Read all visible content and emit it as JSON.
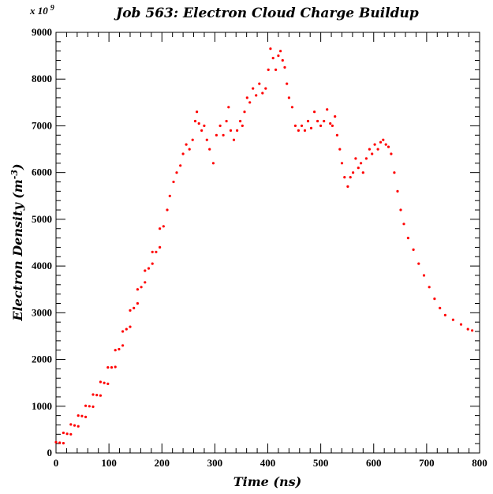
{
  "chart_data": {
    "type": "scatter",
    "title": "Job 563: Electron Cloud Charge Buildup",
    "xlabel": "Time (ns)",
    "ylabel_text": "Electron Density (m",
    "ylabel_exponent": "-3",
    "ylabel_close": ")",
    "y_multiplier_label": "x 10",
    "y_multiplier_exponent": "9",
    "xlim": [
      0,
      800
    ],
    "ylim": [
      0,
      9000
    ],
    "x_ticks": [
      0,
      100,
      200,
      300,
      400,
      500,
      600,
      700,
      800
    ],
    "y_ticks": [
      0,
      1000,
      2000,
      3000,
      4000,
      5000,
      6000,
      7000,
      8000,
      9000
    ],
    "grid": false,
    "marker_color": "#ff0000",
    "series": [
      {
        "points": [
          [
            0,
            230
          ],
          [
            7,
            220
          ],
          [
            14,
            210
          ],
          [
            14,
            430
          ],
          [
            21,
            410
          ],
          [
            28,
            400
          ],
          [
            28,
            610
          ],
          [
            35,
            590
          ],
          [
            42,
            570
          ],
          [
            42,
            800
          ],
          [
            49,
            790
          ],
          [
            56,
            770
          ],
          [
            56,
            1010
          ],
          [
            63,
            1000
          ],
          [
            70,
            990
          ],
          [
            70,
            1250
          ],
          [
            77,
            1240
          ],
          [
            84,
            1230
          ],
          [
            84,
            1520
          ],
          [
            91,
            1500
          ],
          [
            98,
            1480
          ],
          [
            98,
            1830
          ],
          [
            105,
            1830
          ],
          [
            112,
            1840
          ],
          [
            112,
            2200
          ],
          [
            119,
            2220
          ],
          [
            126,
            2300
          ],
          [
            126,
            2600
          ],
          [
            133,
            2650
          ],
          [
            140,
            2700
          ],
          [
            140,
            3050
          ],
          [
            147,
            3100
          ],
          [
            154,
            3200
          ],
          [
            154,
            3500
          ],
          [
            161,
            3550
          ],
          [
            168,
            3650
          ],
          [
            168,
            3900
          ],
          [
            175,
            3950
          ],
          [
            182,
            4050
          ],
          [
            182,
            4300
          ],
          [
            189,
            4300
          ],
          [
            196,
            4400
          ],
          [
            196,
            4800
          ],
          [
            203,
            4850
          ],
          [
            210,
            5200
          ],
          [
            215,
            5500
          ],
          [
            222,
            5800
          ],
          [
            228,
            6000
          ],
          [
            235,
            6150
          ],
          [
            240,
            6400
          ],
          [
            246,
            6600
          ],
          [
            252,
            6500
          ],
          [
            258,
            6700
          ],
          [
            263,
            7100
          ],
          [
            266,
            7300
          ],
          [
            270,
            7050
          ],
          [
            275,
            6900
          ],
          [
            280,
            7000
          ],
          [
            285,
            6700
          ],
          [
            290,
            6500
          ],
          [
            297,
            6200
          ],
          [
            303,
            6800
          ],
          [
            310,
            7000
          ],
          [
            316,
            6800
          ],
          [
            322,
            7100
          ],
          [
            326,
            7400
          ],
          [
            330,
            6900
          ],
          [
            336,
            6700
          ],
          [
            342,
            6900
          ],
          [
            348,
            7100
          ],
          [
            352,
            7000
          ],
          [
            356,
            7300
          ],
          [
            361,
            7600
          ],
          [
            366,
            7500
          ],
          [
            372,
            7800
          ],
          [
            378,
            7650
          ],
          [
            384,
            7900
          ],
          [
            390,
            7700
          ],
          [
            396,
            7800
          ],
          [
            401,
            8200
          ],
          [
            405,
            8650
          ],
          [
            410,
            8450
          ],
          [
            415,
            8200
          ],
          [
            420,
            8500
          ],
          [
            424,
            8600
          ],
          [
            428,
            8400
          ],
          [
            432,
            8250
          ],
          [
            436,
            7900
          ],
          [
            440,
            7600
          ],
          [
            446,
            7400
          ],
          [
            452,
            7000
          ],
          [
            458,
            6900
          ],
          [
            464,
            7000
          ],
          [
            470,
            6900
          ],
          [
            476,
            7100
          ],
          [
            482,
            6950
          ],
          [
            488,
            7300
          ],
          [
            494,
            7100
          ],
          [
            500,
            7000
          ],
          [
            506,
            7100
          ],
          [
            512,
            7350
          ],
          [
            518,
            7050
          ],
          [
            522,
            7000
          ],
          [
            527,
            7200
          ],
          [
            531,
            6800
          ],
          [
            536,
            6500
          ],
          [
            540,
            6200
          ],
          [
            545,
            5900
          ],
          [
            551,
            5700
          ],
          [
            556,
            5900
          ],
          [
            561,
            6000
          ],
          [
            566,
            6300
          ],
          [
            571,
            6100
          ],
          [
            576,
            6200
          ],
          [
            580,
            6000
          ],
          [
            586,
            6300
          ],
          [
            592,
            6500
          ],
          [
            597,
            6400
          ],
          [
            602,
            6600
          ],
          [
            608,
            6500
          ],
          [
            613,
            6650
          ],
          [
            618,
            6700
          ],
          [
            623,
            6600
          ],
          [
            628,
            6550
          ],
          [
            633,
            6400
          ],
          [
            639,
            6000
          ],
          [
            645,
            5600
          ],
          [
            651,
            5200
          ],
          [
            657,
            4900
          ],
          [
            665,
            4600
          ],
          [
            675,
            4350
          ],
          [
            685,
            4050
          ],
          [
            695,
            3800
          ],
          [
            705,
            3550
          ],
          [
            715,
            3300
          ],
          [
            725,
            3100
          ],
          [
            735,
            2950
          ],
          [
            750,
            2850
          ],
          [
            765,
            2750
          ],
          [
            778,
            2650
          ],
          [
            786,
            2620
          ]
        ]
      }
    ]
  }
}
